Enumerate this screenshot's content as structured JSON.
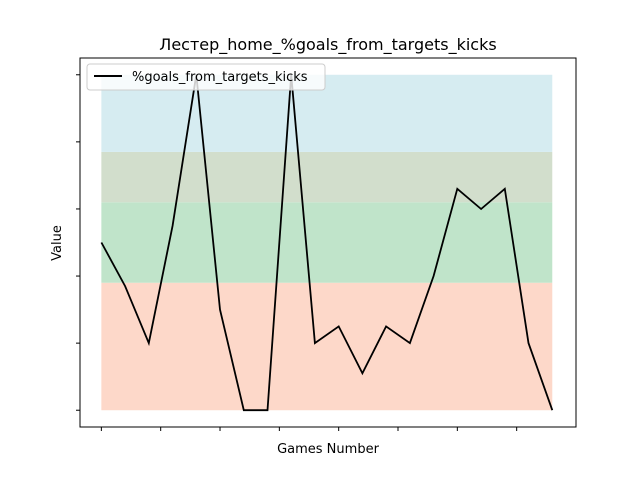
{
  "chart_data": {
    "type": "line",
    "title": "Лестер_home_%goals_from_targets_kicks",
    "xlabel": "Games Number",
    "ylabel": "Value",
    "grid": false,
    "legend": {
      "placement": "top-left"
    },
    "bands": [
      {
        "from": 0.0,
        "to": 0.38,
        "color": "#fdd8c9"
      },
      {
        "from": 0.38,
        "to": 0.62,
        "color": "#c0e4ca"
      },
      {
        "from": 0.62,
        "to": 0.77,
        "color": "#d2decc"
      },
      {
        "from": 0.77,
        "to": 1.0,
        "color": "#d6ecf1"
      }
    ],
    "xlim": [
      -0.9,
      20.0
    ],
    "ylim": [
      -0.05,
      1.05
    ],
    "x_ticks": [
      0,
      2.5,
      5,
      7.5,
      10,
      12.5,
      15,
      17.5
    ],
    "y_ticks": [
      0,
      0.2,
      0.4,
      0.6,
      0.8,
      1.0
    ],
    "series": [
      {
        "name": "%goals_from_targets_kicks",
        "color": "#000000",
        "x": [
          0,
          1,
          2,
          3,
          4,
          5,
          6,
          7,
          8,
          9,
          10,
          11,
          12,
          13,
          14,
          15,
          16,
          17,
          18,
          19
        ],
        "values": [
          0.5,
          0.37,
          0.2,
          0.55,
          1.0,
          0.3,
          0.0,
          0.0,
          1.0,
          0.2,
          0.25,
          0.11,
          0.25,
          0.2,
          0.4,
          0.66,
          0.6,
          0.66,
          0.2,
          0.0
        ]
      }
    ]
  }
}
